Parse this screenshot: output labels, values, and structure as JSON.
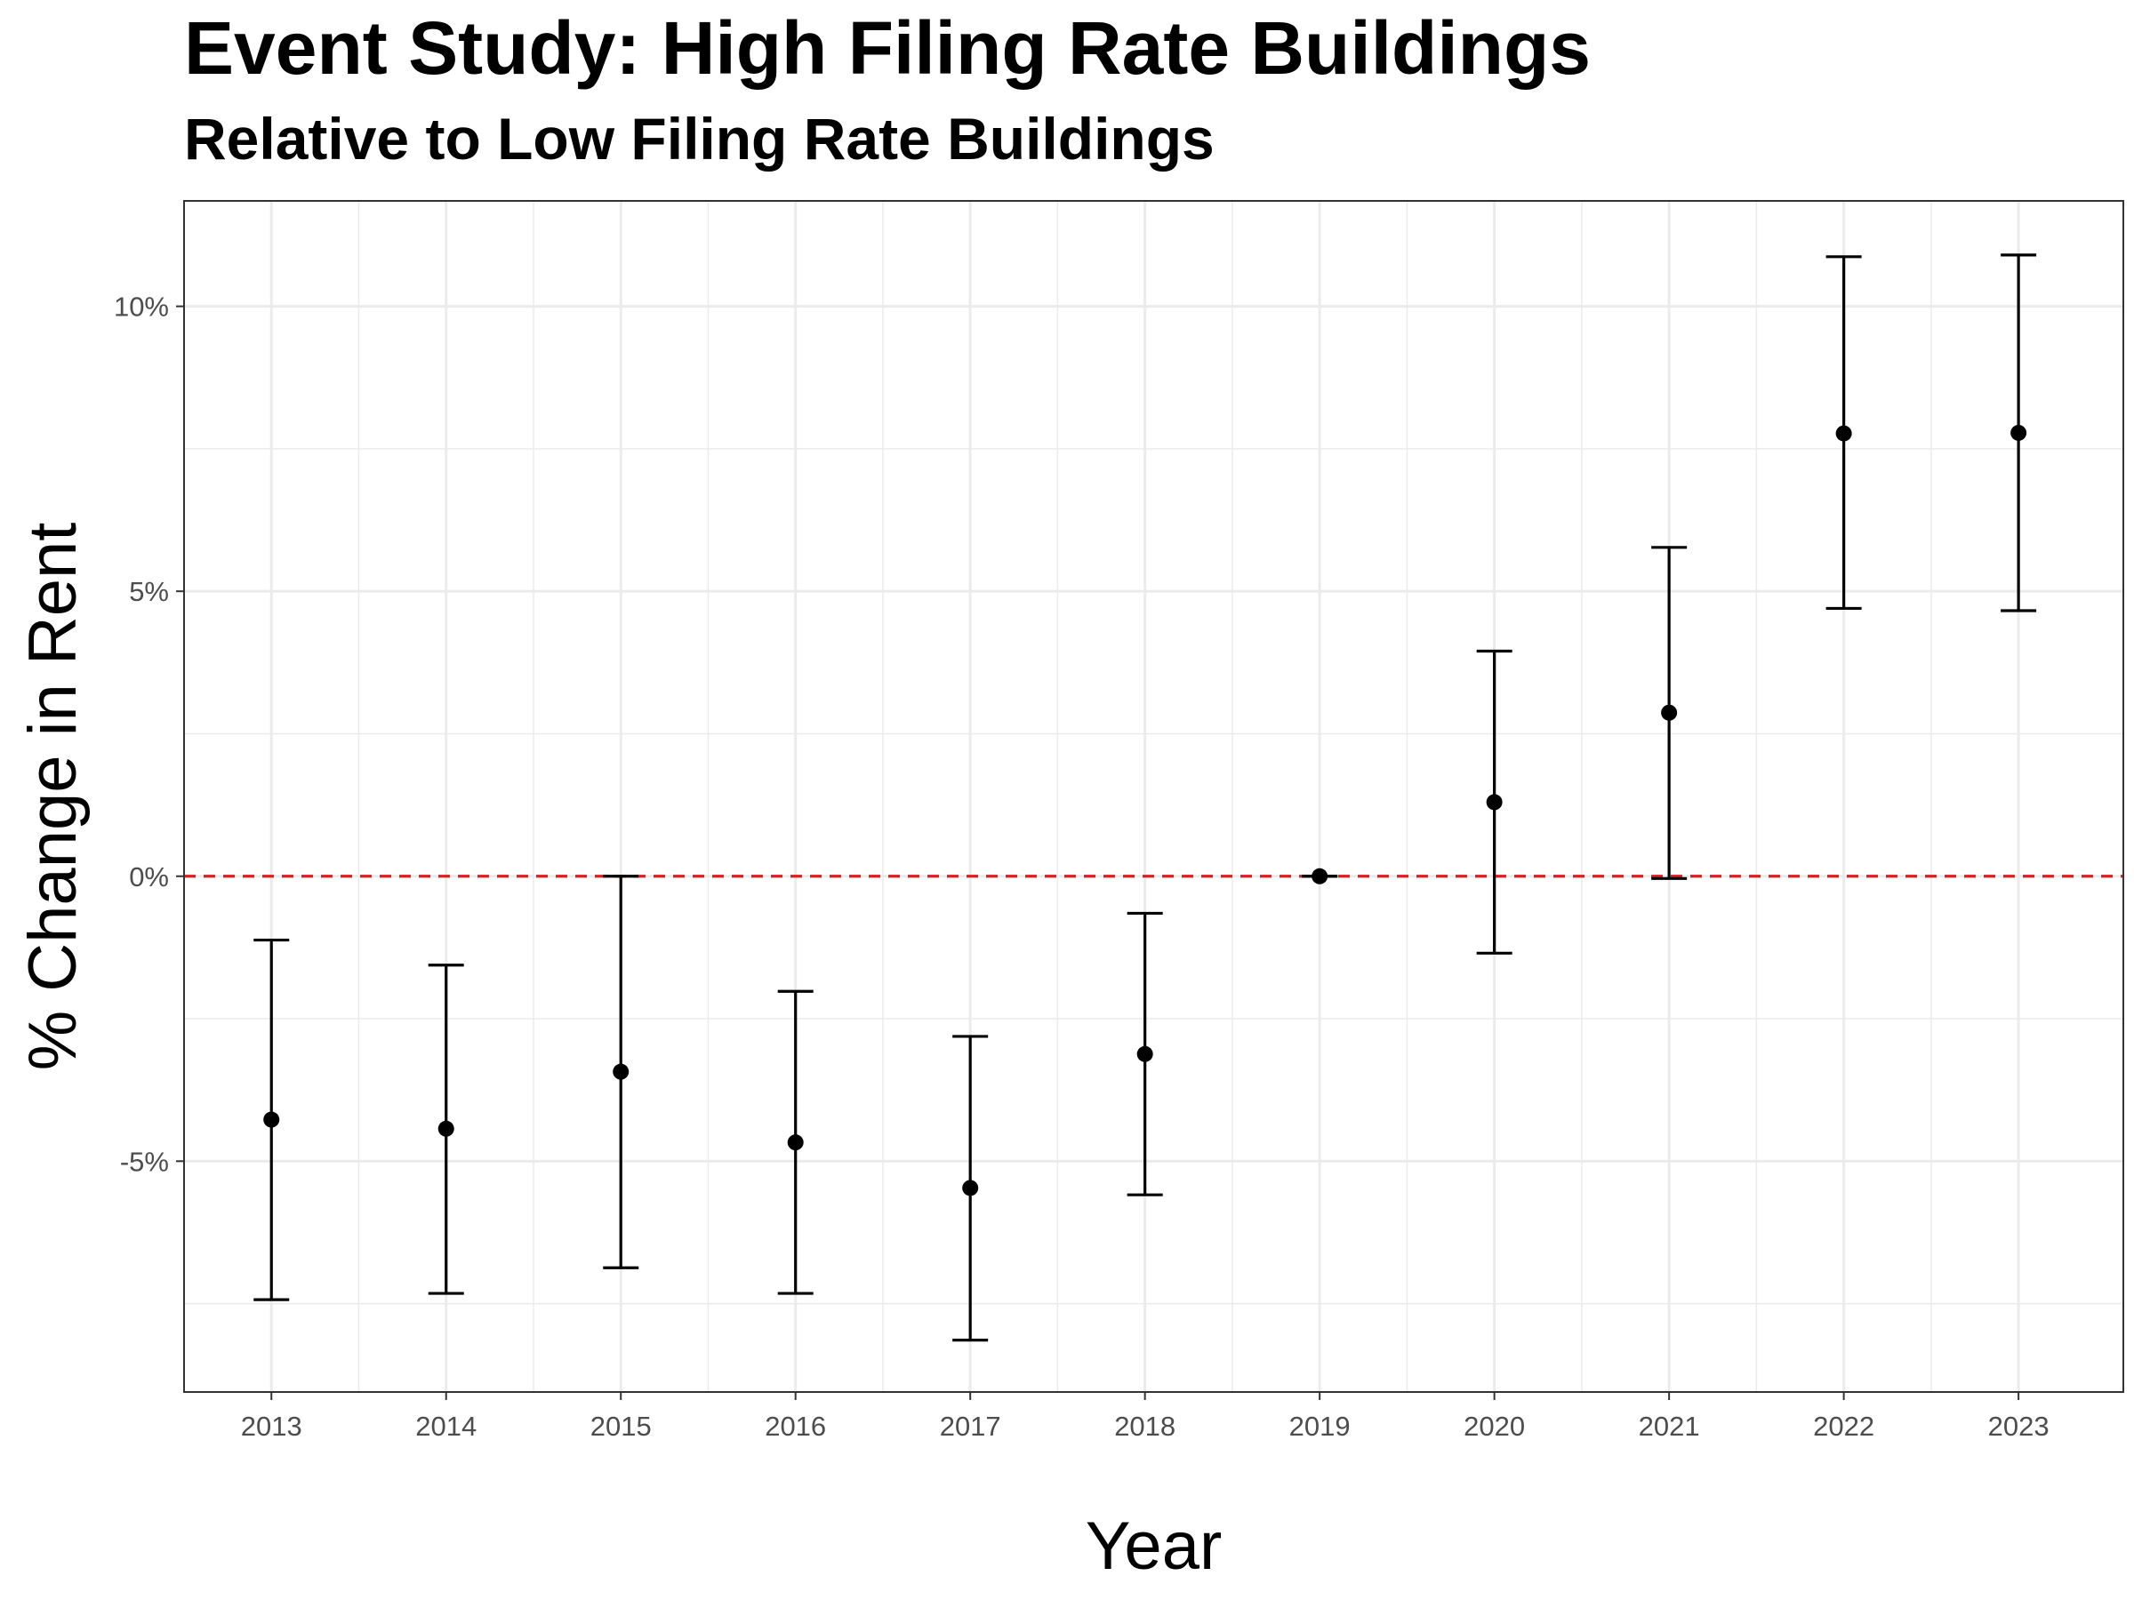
{
  "chart_data": {
    "type": "scatter",
    "title": "Event Study: High Filing Rate Buildings",
    "subtitle": "Relative to Low Filing Rate Buildings",
    "xlabel": "Year",
    "ylabel": "% Change in Rent",
    "x_ticks": [
      "2013",
      "2014",
      "2015",
      "2016",
      "2017",
      "2018",
      "2019",
      "2020",
      "2021",
      "2022",
      "2023"
    ],
    "y_ticks": [
      {
        "value": -5,
        "label": "-5%"
      },
      {
        "value": 0,
        "label": "0%"
      },
      {
        "value": 5,
        "label": "5%"
      },
      {
        "value": 10,
        "label": "10%"
      }
    ],
    "xlim": [
      2012.5,
      2023.6
    ],
    "ylim": [
      -9.05,
      11.85
    ],
    "reference_line": {
      "y": 0,
      "color": "#e41a1c",
      "style": "dashed"
    },
    "grid": true,
    "points": [
      {
        "x": 2013,
        "estimate": -4.27,
        "lower": -7.43,
        "upper": -1.12
      },
      {
        "x": 2014,
        "estimate": -4.43,
        "lower": -7.32,
        "upper": -1.56
      },
      {
        "x": 2015,
        "estimate": -3.43,
        "lower": -6.87,
        "upper": 0.0
      },
      {
        "x": 2016,
        "estimate": -4.67,
        "lower": -7.32,
        "upper": -2.02
      },
      {
        "x": 2017,
        "estimate": -5.47,
        "lower": -8.14,
        "upper": -2.81
      },
      {
        "x": 2018,
        "estimate": -3.12,
        "lower": -5.59,
        "upper": -0.65
      },
      {
        "x": 2019,
        "estimate": 0.0,
        "lower": 0.0,
        "upper": 0.0
      },
      {
        "x": 2020,
        "estimate": 1.3,
        "lower": -1.35,
        "upper": 3.95
      },
      {
        "x": 2021,
        "estimate": 2.87,
        "lower": -0.04,
        "upper": 5.77
      },
      {
        "x": 2022,
        "estimate": 7.77,
        "lower": 4.7,
        "upper": 10.87
      },
      {
        "x": 2023,
        "estimate": 7.78,
        "lower": 4.66,
        "upper": 10.9
      }
    ],
    "colors": {
      "point": "#000000",
      "errorbar": "#000000",
      "grid": "#ebebeb",
      "panel_border": "#333333"
    }
  }
}
